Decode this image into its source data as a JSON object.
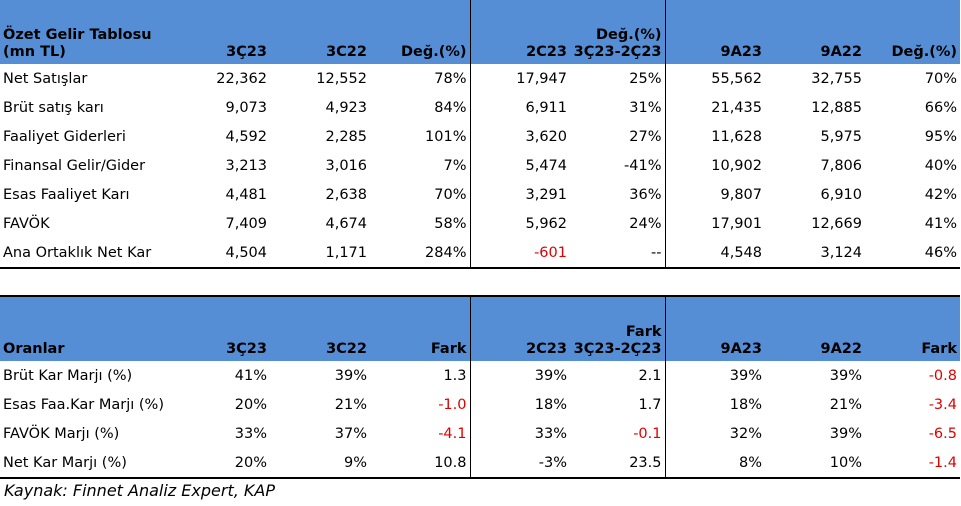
{
  "income": {
    "header": {
      "title1": "Özet Gelir Tablosu",
      "title2": "(mn TL)",
      "c1": "3Ç23",
      "c2": "3C22",
      "c3": "Değ.(%)",
      "c4": "2C23",
      "c5_line1": "Değ.(%)",
      "c5_line2": "3Ç23-2Ç23",
      "c6": "9A23",
      "c7": "9A22",
      "c8": "Değ.(%)"
    },
    "rows": [
      {
        "label": "Net Satışlar",
        "v": [
          "22,362",
          "12,552",
          "78%",
          "17,947",
          "25%",
          "55,562",
          "32,755",
          "70%"
        ]
      },
      {
        "label": "Brüt satış karı",
        "v": [
          "9,073",
          "4,923",
          "84%",
          "6,911",
          "31%",
          "21,435",
          "12,885",
          "66%"
        ]
      },
      {
        "label": "Faaliyet Giderleri",
        "v": [
          "4,592",
          "2,285",
          "101%",
          "3,620",
          "27%",
          "11,628",
          "5,975",
          "95%"
        ]
      },
      {
        "label": "Finansal Gelir/Gider",
        "v": [
          "3,213",
          "3,016",
          "7%",
          "5,474",
          "-41%",
          "10,902",
          "7,806",
          "40%"
        ]
      },
      {
        "label": "Esas Faaliyet Karı",
        "v": [
          "4,481",
          "2,638",
          "70%",
          "3,291",
          "36%",
          "9,807",
          "6,910",
          "42%"
        ]
      },
      {
        "label": "FAVÖK",
        "v": [
          "7,409",
          "4,674",
          "58%",
          "5,962",
          "24%",
          "17,901",
          "12,669",
          "41%"
        ]
      },
      {
        "label": "Ana Ortaklık Net Kar",
        "v": [
          "4,504",
          "1,171",
          "284%",
          "-601",
          "--",
          "4,548",
          "3,124",
          "46%"
        ],
        "neg": [
          false,
          false,
          false,
          true,
          false,
          false,
          false,
          false
        ]
      }
    ]
  },
  "ratios": {
    "header": {
      "title": "Oranlar",
      "c1": "3Ç23",
      "c2": "3C22",
      "c3": "Fark",
      "c4": "2C23",
      "c5_line1": "Fark",
      "c5_line2": "3Ç23-2Ç23",
      "c6": "9A23",
      "c7": "9A22",
      "c8": "Fark"
    },
    "rows": [
      {
        "label": "Brüt Kar Marjı (%)",
        "v": [
          "41%",
          "39%",
          "1.3",
          "39%",
          "2.1",
          "39%",
          "39%",
          "-0.8"
        ],
        "neg": [
          false,
          false,
          false,
          false,
          false,
          false,
          false,
          true
        ]
      },
      {
        "label": "Esas Faa.Kar Marjı (%)",
        "v": [
          "20%",
          "21%",
          "-1.0",
          "18%",
          "1.7",
          "18%",
          "21%",
          "-3.4"
        ],
        "neg": [
          false,
          false,
          true,
          false,
          false,
          false,
          false,
          true
        ]
      },
      {
        "label": "FAVÖK Marjı (%)",
        "v": [
          "33%",
          "37%",
          "-4.1",
          "33%",
          "-0.1",
          "32%",
          "39%",
          "-6.5"
        ],
        "neg": [
          false,
          false,
          true,
          false,
          true,
          false,
          false,
          true
        ]
      },
      {
        "label": "Net Kar Marjı (%)",
        "v": [
          "20%",
          "9%",
          "10.8",
          "-3%",
          "23.5",
          "8%",
          "10%",
          "-1.4"
        ],
        "neg": [
          false,
          false,
          false,
          false,
          false,
          false,
          false,
          true
        ]
      }
    ]
  },
  "source": "Kaynak: Finnet Analiz Expert, KAP"
}
